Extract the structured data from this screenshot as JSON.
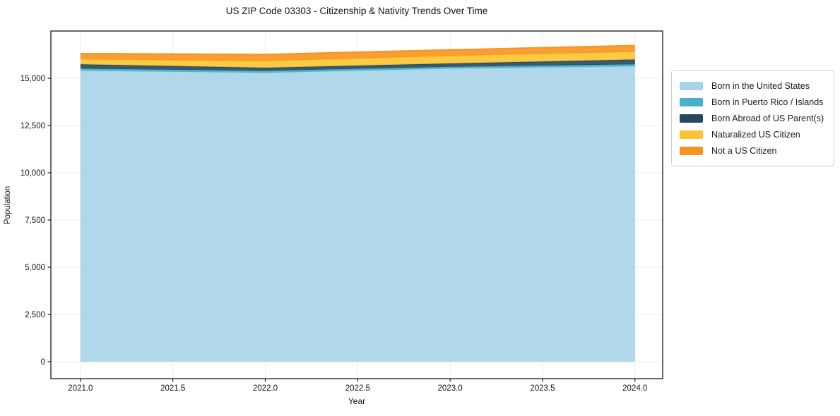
{
  "figure": {
    "title": "US ZIP Code 03303 - Citizenship & Nativity Trends Over Time"
  },
  "chart_data": {
    "type": "area",
    "stacked": true,
    "title": "US ZIP Code 03303 - Citizenship & Nativity Trends Over Time",
    "xlabel": "Year",
    "ylabel": "Population",
    "x": [
      2021,
      2022,
      2023,
      2024
    ],
    "series": [
      {
        "name": "Born in the United States",
        "color": "#a7d3e8",
        "values": [
          15400,
          15290,
          15510,
          15630
        ]
      },
      {
        "name": "Born in Puerto Rico / Islands",
        "color": "#46b1c9",
        "values": [
          110,
          100,
          100,
          110
        ]
      },
      {
        "name": "Born Abroad of US Parent(s)",
        "color": "#25485e",
        "values": [
          225,
          165,
          175,
          250
        ]
      },
      {
        "name": "Naturalized US Citizen",
        "color": "#fcc431",
        "values": [
          260,
          355,
          400,
          410
        ]
      },
      {
        "name": "Not a US Citizen",
        "color": "#f7941f",
        "values": [
          310,
          350,
          320,
          335
        ]
      }
    ],
    "xlim": [
      2020.84,
      2024.15
    ],
    "ylim": [
      -895,
      17500
    ],
    "xticks": {
      "values": [
        2021.0,
        2021.5,
        2022.0,
        2022.5,
        2023.0,
        2023.5,
        2024.0
      ],
      "labels": [
        "2021.0",
        "2021.5",
        "2022.0",
        "2022.5",
        "2023.0",
        "2023.5",
        "2024.0"
      ]
    },
    "yticks": {
      "values": [
        0,
        2500,
        5000,
        7500,
        10000,
        12500,
        15000
      ],
      "labels": [
        "0",
        "2,500",
        "5,000",
        "7,500",
        "10,000",
        "12,500",
        "15,000"
      ]
    },
    "grid": true,
    "legend_position": "right"
  }
}
